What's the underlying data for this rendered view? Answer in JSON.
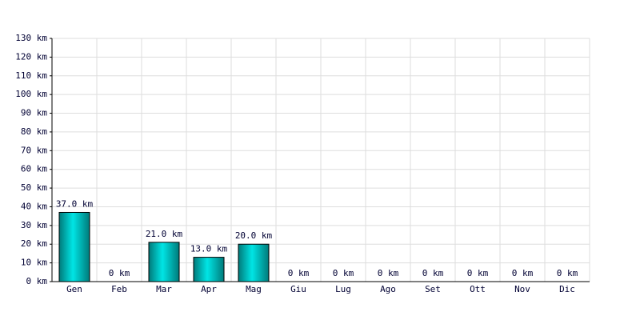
{
  "chart_data": {
    "type": "bar",
    "categories": [
      "Gen",
      "Feb",
      "Mar",
      "Apr",
      "Mag",
      "Giu",
      "Lug",
      "Ago",
      "Set",
      "Ott",
      "Nov",
      "Dic"
    ],
    "values": [
      37,
      0,
      21,
      13,
      20,
      0,
      0,
      0,
      0,
      0,
      0,
      0
    ],
    "value_labels": [
      "37.0 km",
      "0 km",
      "21.0 km",
      "13.0 km",
      "20.0 km",
      "0 km",
      "0 km",
      "0 km",
      "0 km",
      "0 km",
      "0 km",
      "0 km"
    ],
    "color": "#00e5e5",
    "ylim": [
      0,
      130
    ],
    "yticks": [
      {
        "value": 0,
        "label": "0 km"
      },
      {
        "value": 10,
        "label": "10 km"
      },
      {
        "value": 20,
        "label": "20 km"
      },
      {
        "value": 30,
        "label": "30 km"
      },
      {
        "value": 40,
        "label": "40 km"
      },
      {
        "value": 50,
        "label": "50 km"
      },
      {
        "value": 60,
        "label": "60 km"
      },
      {
        "value": 70,
        "label": "70 km"
      },
      {
        "value": 80,
        "label": "80 km"
      },
      {
        "value": 90,
        "label": "90 km"
      },
      {
        "value": 100,
        "label": "100 km"
      },
      {
        "value": 110,
        "label": "110 km"
      },
      {
        "value": 120,
        "label": "120 km"
      },
      {
        "value": 130,
        "label": "130 km"
      }
    ],
    "grid": true
  }
}
